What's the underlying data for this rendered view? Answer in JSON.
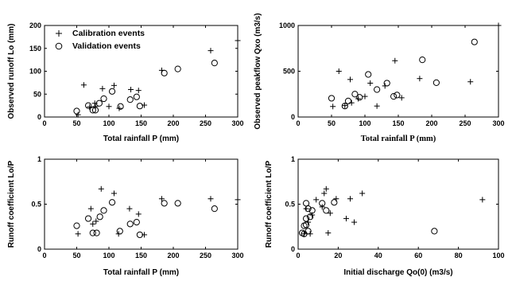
{
  "chart_data": [
    {
      "id": "p1",
      "type": "scatter",
      "xlabel": "Total rainfall  P (mm)",
      "ylabel": "Observed runoff Lo (mm)",
      "xlim": [
        0,
        300
      ],
      "ylim": [
        0,
        200
      ],
      "xticks": [
        0,
        50,
        100,
        150,
        200,
        250,
        300
      ],
      "yticks": [
        0,
        50,
        100,
        150,
        200
      ],
      "legend": {
        "placement": "top-left",
        "entries": [
          "Calibration events",
          "Validation events"
        ]
      },
      "series": [
        {
          "name": "Calibration events",
          "marker": "plus",
          "points": [
            [
              52,
              5
            ],
            [
              61,
              70
            ],
            [
              70,
              22
            ],
            [
              78,
              30
            ],
            [
              79,
              23
            ],
            [
              90,
              62
            ],
            [
              100,
              23
            ],
            [
              108,
              69
            ],
            [
              116,
              19
            ],
            [
              134,
              60
            ],
            [
              146,
              58
            ],
            [
              155,
              26
            ],
            [
              182,
              102
            ],
            [
              258,
              145
            ],
            [
              300,
              167
            ]
          ]
        },
        {
          "name": "Validation events",
          "marker": "circle",
          "points": [
            [
              50,
              13
            ],
            [
              68,
              25
            ],
            [
              75,
              15
            ],
            [
              79,
              15
            ],
            [
              85,
              30
            ],
            [
              92,
              40
            ],
            [
              105,
              56
            ],
            [
              118,
              23
            ],
            [
              133,
              38
            ],
            [
              143,
              44
            ],
            [
              148,
              24
            ],
            [
              186,
              96
            ],
            [
              207,
              105
            ],
            [
              264,
              118
            ]
          ]
        }
      ]
    },
    {
      "id": "p2",
      "type": "scatter",
      "xlabel": "Total rainfall  P (mm)",
      "ylabel": "Observed peakflow Qxo (m3/s)",
      "xlim": [
        0,
        300
      ],
      "ylim": [
        0,
        1000
      ],
      "xticks": [
        0,
        50,
        100,
        150,
        200,
        250,
        300
      ],
      "yticks": [
        0,
        500,
        1000
      ],
      "series": [
        {
          "name": "Calibration events",
          "marker": "plus",
          "points": [
            [
              52,
              115
            ],
            [
              61,
              500
            ],
            [
              70,
              125
            ],
            [
              78,
              410
            ],
            [
              80,
              155
            ],
            [
              90,
              200
            ],
            [
              100,
              225
            ],
            [
              108,
              370
            ],
            [
              118,
              120
            ],
            [
              130,
              340
            ],
            [
              145,
              615
            ],
            [
              155,
              210
            ],
            [
              182,
              420
            ],
            [
              258,
              385
            ],
            [
              300,
              1000
            ]
          ]
        },
        {
          "name": "Validation events",
          "marker": "circle",
          "points": [
            [
              50,
              205
            ],
            [
              70,
              120
            ],
            [
              75,
              175
            ],
            [
              85,
              250
            ],
            [
              92,
              215
            ],
            [
              105,
              465
            ],
            [
              118,
              300
            ],
            [
              133,
              370
            ],
            [
              143,
              225
            ],
            [
              148,
              240
            ],
            [
              186,
              625
            ],
            [
              207,
              375
            ],
            [
              264,
              820
            ]
          ]
        }
      ]
    },
    {
      "id": "p3",
      "type": "scatter",
      "xlabel": "Total rainfall  P (mm)",
      "ylabel": "Runoff coefficient Lo/P",
      "xlim": [
        0,
        300
      ],
      "ylim": [
        0,
        1
      ],
      "xticks": [
        0,
        50,
        100,
        150,
        200,
        250,
        300
      ],
      "yticks": [
        0,
        0.5,
        1
      ],
      "series": [
        {
          "name": "Calibration events",
          "marker": "plus",
          "points": [
            [
              52,
              0.17
            ],
            [
              72,
              0.45
            ],
            [
              75,
              0.28
            ],
            [
              80,
              0.31
            ],
            [
              88,
              0.67
            ],
            [
              108,
              0.62
            ],
            [
              115,
              0.17
            ],
            [
              132,
              0.45
            ],
            [
              146,
              0.39
            ],
            [
              155,
              0.16
            ],
            [
              182,
              0.56
            ],
            [
              258,
              0.56
            ],
            [
              300,
              0.55
            ]
          ]
        },
        {
          "name": "Validation events",
          "marker": "circle",
          "points": [
            [
              50,
              0.26
            ],
            [
              68,
              0.34
            ],
            [
              75,
              0.18
            ],
            [
              81,
              0.18
            ],
            [
              86,
              0.36
            ],
            [
              92,
              0.43
            ],
            [
              105,
              0.52
            ],
            [
              117,
              0.2
            ],
            [
              133,
              0.28
            ],
            [
              143,
              0.3
            ],
            [
              148,
              0.16
            ],
            [
              186,
              0.51
            ],
            [
              207,
              0.51
            ],
            [
              264,
              0.45
            ]
          ]
        }
      ]
    },
    {
      "id": "p4",
      "type": "scatter",
      "xlabel": "Initial discharge Qo(0) (m3/s)",
      "ylabel": "Runoff coefficient Lo/P",
      "xlim": [
        0,
        100
      ],
      "ylim": [
        0,
        1
      ],
      "xticks": [
        0,
        20,
        40,
        60,
        80,
        100
      ],
      "yticks": [
        0,
        0.5,
        1
      ],
      "series": [
        {
          "name": "Calibration events",
          "marker": "plus",
          "points": [
            [
              3,
              0.17
            ],
            [
              4,
              0.45
            ],
            [
              5,
              0.3
            ],
            [
              6,
              0.17
            ],
            [
              7,
              0.38
            ],
            [
              9,
              0.55
            ],
            [
              12,
              0.47
            ],
            [
              13,
              0.62
            ],
            [
              14,
              0.67
            ],
            [
              15,
              0.18
            ],
            [
              16,
              0.4
            ],
            [
              19,
              0.56
            ],
            [
              24,
              0.34
            ],
            [
              26,
              0.56
            ],
            [
              28,
              0.3
            ],
            [
              32,
              0.62
            ],
            [
              92,
              0.55
            ]
          ]
        },
        {
          "name": "Validation events",
          "marker": "circle",
          "points": [
            [
              2,
              0.18
            ],
            [
              3,
              0.26
            ],
            [
              3,
              0.17
            ],
            [
              4,
              0.27
            ],
            [
              4,
              0.34
            ],
            [
              5,
              0.45
            ],
            [
              4,
              0.51
            ],
            [
              6,
              0.36
            ],
            [
              7,
              0.43
            ],
            [
              5,
              0.2
            ],
            [
              12,
              0.51
            ],
            [
              14,
              0.43
            ],
            [
              18,
              0.52
            ],
            [
              68,
              0.2
            ]
          ]
        }
      ]
    }
  ]
}
